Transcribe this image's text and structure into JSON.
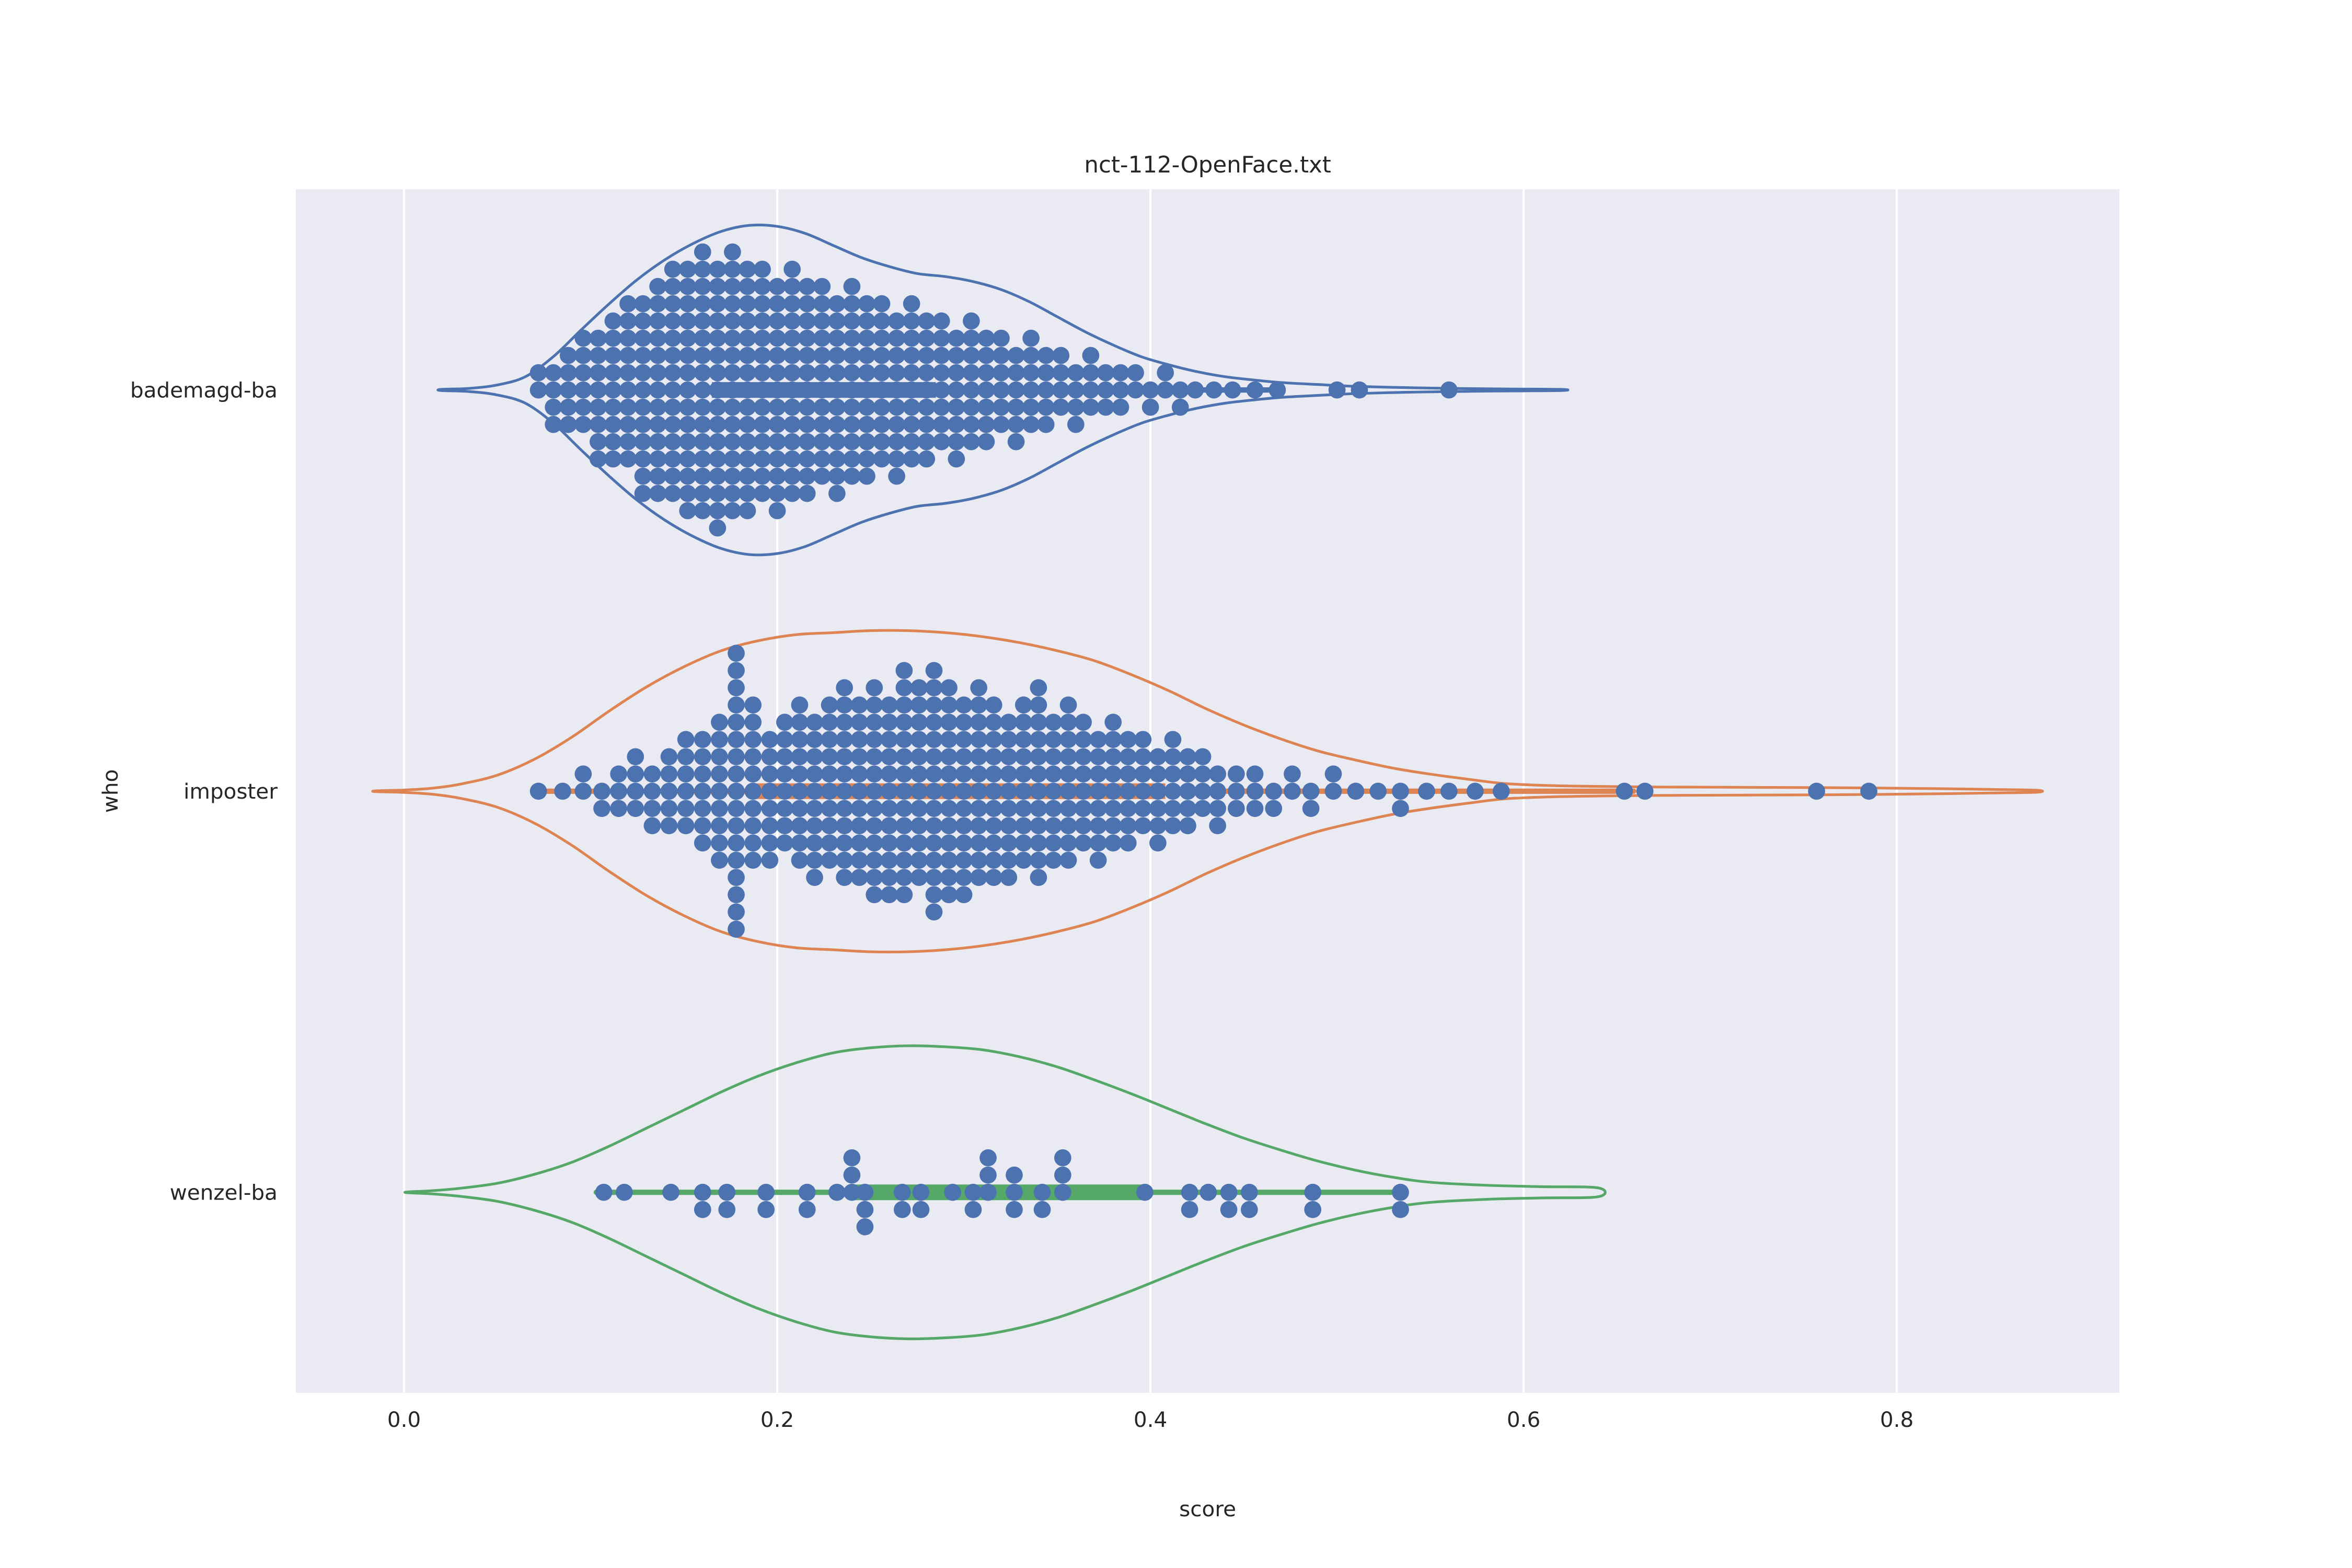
{
  "title": "nct-112-OpenFace.txt",
  "axes": {
    "xlabel": "score",
    "ylabel": "who",
    "x_tick_values": [
      0.0,
      0.2,
      0.4,
      0.6,
      0.8
    ],
    "x_tick_labels": [
      "0.0",
      "0.2",
      "0.4",
      "0.6",
      "0.8"
    ],
    "xlim": [
      -0.058,
      0.919
    ],
    "categories": [
      "bademagd-ba",
      "imposter",
      "wenzel-ba"
    ],
    "grid": "vertical-white-lines"
  },
  "colors": {
    "figure_bg": "#ffffff",
    "plot_bg": "#eaeaf2",
    "grid_color": "#ffffff",
    "text_color": "#262626",
    "swarm_dot_color": "#4c72b0",
    "median_dot_color": "#ffffff",
    "series_colors": [
      "#4c72b0",
      "#dd8452",
      "#55a868"
    ]
  },
  "chart_data": {
    "type": "violin",
    "subtype": "horizontal-violin-with-swarm",
    "title": "nct-112-OpenFace.txt",
    "xlabel": "score",
    "ylabel": "who",
    "categories": [
      "bademagd-ba",
      "imposter",
      "wenzel-ba"
    ],
    "legend": "none",
    "series": [
      {
        "name": "bademagd-ba",
        "color": "#4c72b0",
        "box": {
          "whisker_min": 0.072,
          "q1": 0.165,
          "median": 0.218,
          "q3": 0.285,
          "whisker_max": 0.468
        },
        "violin_range": [
          0.02,
          0.62
        ],
        "violin_profile": [
          [
            0.02,
            0.003
          ],
          [
            0.035,
            0.008
          ],
          [
            0.05,
            0.025
          ],
          [
            0.065,
            0.066
          ],
          [
            0.08,
            0.166
          ],
          [
            0.095,
            0.3
          ],
          [
            0.11,
            0.43
          ],
          [
            0.125,
            0.55
          ],
          [
            0.14,
            0.65
          ],
          [
            0.155,
            0.73
          ],
          [
            0.17,
            0.79
          ],
          [
            0.185,
            0.82
          ],
          [
            0.2,
            0.815
          ],
          [
            0.215,
            0.78
          ],
          [
            0.23,
            0.72
          ],
          [
            0.245,
            0.66
          ],
          [
            0.26,
            0.615
          ],
          [
            0.275,
            0.58
          ],
          [
            0.29,
            0.565
          ],
          [
            0.305,
            0.54
          ],
          [
            0.32,
            0.5
          ],
          [
            0.335,
            0.44
          ],
          [
            0.35,
            0.365
          ],
          [
            0.365,
            0.29
          ],
          [
            0.38,
            0.224
          ],
          [
            0.395,
            0.166
          ],
          [
            0.41,
            0.125
          ],
          [
            0.425,
            0.091
          ],
          [
            0.44,
            0.066
          ],
          [
            0.455,
            0.05
          ],
          [
            0.47,
            0.037
          ],
          [
            0.49,
            0.027
          ],
          [
            0.51,
            0.018
          ],
          [
            0.535,
            0.012
          ],
          [
            0.56,
            0.008
          ],
          [
            0.59,
            0.005
          ],
          [
            0.62,
            0.003
          ]
        ],
        "swarm_columns": [
          [
            0.072,
            1,
            0
          ],
          [
            0.08,
            1,
            2
          ],
          [
            0.088,
            2,
            2
          ],
          [
            0.096,
            3,
            2
          ],
          [
            0.104,
            3,
            4
          ],
          [
            0.112,
            4,
            4
          ],
          [
            0.12,
            5,
            4
          ],
          [
            0.128,
            5,
            6
          ],
          [
            0.136,
            6,
            6
          ],
          [
            0.144,
            7,
            6
          ],
          [
            0.152,
            7,
            7
          ],
          [
            0.16,
            8,
            7
          ],
          [
            0.168,
            7,
            8
          ],
          [
            0.176,
            8,
            7
          ],
          [
            0.184,
            7,
            7
          ],
          [
            0.192,
            7,
            6
          ],
          [
            0.2,
            6,
            7
          ],
          [
            0.208,
            7,
            6
          ],
          [
            0.216,
            6,
            6
          ],
          [
            0.224,
            6,
            5
          ],
          [
            0.232,
            5,
            6
          ],
          [
            0.24,
            6,
            5
          ],
          [
            0.248,
            5,
            5
          ],
          [
            0.256,
            5,
            4
          ],
          [
            0.264,
            4,
            5
          ],
          [
            0.272,
            5,
            4
          ],
          [
            0.28,
            4,
            4
          ],
          [
            0.288,
            4,
            3
          ],
          [
            0.296,
            3,
            4
          ],
          [
            0.304,
            4,
            3
          ],
          [
            0.312,
            3,
            3
          ],
          [
            0.32,
            3,
            2
          ],
          [
            0.328,
            2,
            3
          ],
          [
            0.336,
            3,
            2
          ],
          [
            0.344,
            2,
            2
          ],
          [
            0.352,
            2,
            1
          ],
          [
            0.36,
            1,
            2
          ],
          [
            0.368,
            2,
            1
          ],
          [
            0.376,
            1,
            1
          ],
          [
            0.384,
            1,
            1
          ],
          [
            0.392,
            1,
            0
          ],
          [
            0.4,
            0,
            1
          ],
          [
            0.408,
            1,
            0
          ],
          [
            0.416,
            0,
            1
          ],
          [
            0.424,
            0,
            0
          ],
          [
            0.434,
            0,
            0
          ],
          [
            0.444,
            0,
            0
          ],
          [
            0.456,
            0,
            0
          ],
          [
            0.468,
            0,
            0
          ],
          [
            0.5,
            0,
            0
          ],
          [
            0.512,
            0,
            0
          ],
          [
            0.56,
            0,
            0
          ]
        ]
      },
      {
        "name": "imposter",
        "color": "#dd8452",
        "box": {
          "whisker_min": 0.072,
          "q1": 0.185,
          "median": 0.298,
          "q3": 0.408,
          "whisker_max": 0.659
        },
        "violin_range": [
          -0.015,
          0.875
        ],
        "violin_profile": [
          [
            -0.015,
            0.002
          ],
          [
            0.0,
            0.006
          ],
          [
            0.015,
            0.015
          ],
          [
            0.03,
            0.035
          ],
          [
            0.05,
            0.08
          ],
          [
            0.07,
            0.16
          ],
          [
            0.09,
            0.27
          ],
          [
            0.11,
            0.4
          ],
          [
            0.13,
            0.52
          ],
          [
            0.15,
            0.62
          ],
          [
            0.17,
            0.7
          ],
          [
            0.19,
            0.75
          ],
          [
            0.21,
            0.78
          ],
          [
            0.23,
            0.79
          ],
          [
            0.25,
            0.8
          ],
          [
            0.27,
            0.8
          ],
          [
            0.29,
            0.79
          ],
          [
            0.31,
            0.77
          ],
          [
            0.33,
            0.74
          ],
          [
            0.35,
            0.7
          ],
          [
            0.37,
            0.65
          ],
          [
            0.39,
            0.58
          ],
          [
            0.41,
            0.5
          ],
          [
            0.43,
            0.41
          ],
          [
            0.45,
            0.33
          ],
          [
            0.47,
            0.26
          ],
          [
            0.49,
            0.2
          ],
          [
            0.51,
            0.155
          ],
          [
            0.53,
            0.115
          ],
          [
            0.55,
            0.085
          ],
          [
            0.57,
            0.06
          ],
          [
            0.59,
            0.038
          ],
          [
            0.615,
            0.028
          ],
          [
            0.64,
            0.024
          ],
          [
            0.67,
            0.021
          ],
          [
            0.7,
            0.02
          ],
          [
            0.73,
            0.019
          ],
          [
            0.76,
            0.018
          ],
          [
            0.79,
            0.016
          ],
          [
            0.82,
            0.013
          ],
          [
            0.85,
            0.009
          ],
          [
            0.875,
            0.005
          ]
        ],
        "swarm_columns": [
          [
            0.072,
            0,
            0
          ],
          [
            0.085,
            0,
            0
          ],
          [
            0.096,
            1,
            0
          ],
          [
            0.106,
            0,
            1
          ],
          [
            0.115,
            1,
            1
          ],
          [
            0.124,
            2,
            1
          ],
          [
            0.133,
            1,
            2
          ],
          [
            0.142,
            2,
            2
          ],
          [
            0.151,
            3,
            2
          ],
          [
            0.16,
            3,
            3
          ],
          [
            0.169,
            4,
            4
          ],
          [
            0.178,
            8,
            8
          ],
          [
            0.187,
            5,
            4
          ],
          [
            0.196,
            3,
            4
          ],
          [
            0.204,
            4,
            3
          ],
          [
            0.212,
            5,
            4
          ],
          [
            0.22,
            4,
            5
          ],
          [
            0.228,
            5,
            4
          ],
          [
            0.236,
            6,
            5
          ],
          [
            0.244,
            5,
            5
          ],
          [
            0.252,
            6,
            6
          ],
          [
            0.26,
            5,
            6
          ],
          [
            0.268,
            7,
            6
          ],
          [
            0.276,
            6,
            5
          ],
          [
            0.284,
            7,
            7
          ],
          [
            0.292,
            6,
            6
          ],
          [
            0.3,
            5,
            6
          ],
          [
            0.308,
            6,
            5
          ],
          [
            0.316,
            5,
            5
          ],
          [
            0.324,
            4,
            5
          ],
          [
            0.332,
            5,
            4
          ],
          [
            0.34,
            6,
            5
          ],
          [
            0.348,
            4,
            4
          ],
          [
            0.356,
            5,
            4
          ],
          [
            0.364,
            4,
            3
          ],
          [
            0.372,
            3,
            4
          ],
          [
            0.38,
            4,
            3
          ],
          [
            0.388,
            3,
            3
          ],
          [
            0.396,
            3,
            2
          ],
          [
            0.404,
            2,
            3
          ],
          [
            0.412,
            3,
            2
          ],
          [
            0.42,
            2,
            2
          ],
          [
            0.428,
            2,
            1
          ],
          [
            0.436,
            1,
            2
          ],
          [
            0.446,
            1,
            1
          ],
          [
            0.456,
            1,
            1
          ],
          [
            0.466,
            0,
            1
          ],
          [
            0.476,
            1,
            0
          ],
          [
            0.486,
            0,
            1
          ],
          [
            0.498,
            1,
            0
          ],
          [
            0.51,
            0,
            0
          ],
          [
            0.522,
            0,
            0
          ],
          [
            0.534,
            0,
            1
          ],
          [
            0.548,
            0,
            0
          ],
          [
            0.56,
            0,
            0
          ],
          [
            0.574,
            0,
            0
          ],
          [
            0.588,
            0,
            0
          ],
          [
            0.654,
            0,
            0
          ],
          [
            0.665,
            0,
            0
          ],
          [
            0.757,
            0,
            0
          ],
          [
            0.785,
            0,
            0
          ]
        ]
      },
      {
        "name": "wenzel-ba",
        "color": "#55a868",
        "box": {
          "whisker_min": 0.103,
          "q1": 0.239,
          "median": 0.294,
          "q3": 0.396,
          "whisker_max": 0.537
        },
        "violin_range": [
          0.002,
          0.64
        ],
        "violin_profile": [
          [
            0.002,
            0.002
          ],
          [
            0.015,
            0.008
          ],
          [
            0.03,
            0.02
          ],
          [
            0.05,
            0.045
          ],
          [
            0.07,
            0.09
          ],
          [
            0.09,
            0.15
          ],
          [
            0.11,
            0.23
          ],
          [
            0.13,
            0.32
          ],
          [
            0.15,
            0.41
          ],
          [
            0.17,
            0.5
          ],
          [
            0.19,
            0.58
          ],
          [
            0.21,
            0.645
          ],
          [
            0.23,
            0.695
          ],
          [
            0.25,
            0.72
          ],
          [
            0.27,
            0.73
          ],
          [
            0.29,
            0.725
          ],
          [
            0.31,
            0.71
          ],
          [
            0.33,
            0.675
          ],
          [
            0.35,
            0.625
          ],
          [
            0.37,
            0.56
          ],
          [
            0.39,
            0.49
          ],
          [
            0.41,
            0.415
          ],
          [
            0.43,
            0.34
          ],
          [
            0.45,
            0.27
          ],
          [
            0.47,
            0.21
          ],
          [
            0.49,
            0.155
          ],
          [
            0.51,
            0.11
          ],
          [
            0.53,
            0.075
          ],
          [
            0.55,
            0.05
          ],
          [
            0.58,
            0.035
          ],
          [
            0.61,
            0.028
          ],
          [
            0.64,
            0.022
          ]
        ],
        "swarm_columns": [
          [
            0.107,
            0,
            0
          ],
          [
            0.118,
            0,
            0
          ],
          [
            0.143,
            0,
            0
          ],
          [
            0.16,
            0,
            1
          ],
          [
            0.173,
            0,
            1
          ],
          [
            0.194,
            0,
            1
          ],
          [
            0.216,
            0,
            1
          ],
          [
            0.232,
            0,
            0
          ],
          [
            0.24,
            2,
            0
          ],
          [
            0.247,
            0,
            2
          ],
          [
            0.267,
            0,
            1
          ],
          [
            0.277,
            0,
            1
          ],
          [
            0.294,
            0,
            0
          ],
          [
            0.305,
            0,
            1
          ],
          [
            0.313,
            2,
            0
          ],
          [
            0.327,
            1,
            1
          ],
          [
            0.342,
            0,
            1
          ],
          [
            0.353,
            2,
            0
          ],
          [
            0.397,
            0,
            0
          ],
          [
            0.421,
            0,
            1
          ],
          [
            0.431,
            0,
            0
          ],
          [
            0.442,
            0,
            1
          ],
          [
            0.453,
            0,
            1
          ],
          [
            0.487,
            0,
            1
          ],
          [
            0.534,
            0,
            1
          ]
        ]
      }
    ]
  }
}
